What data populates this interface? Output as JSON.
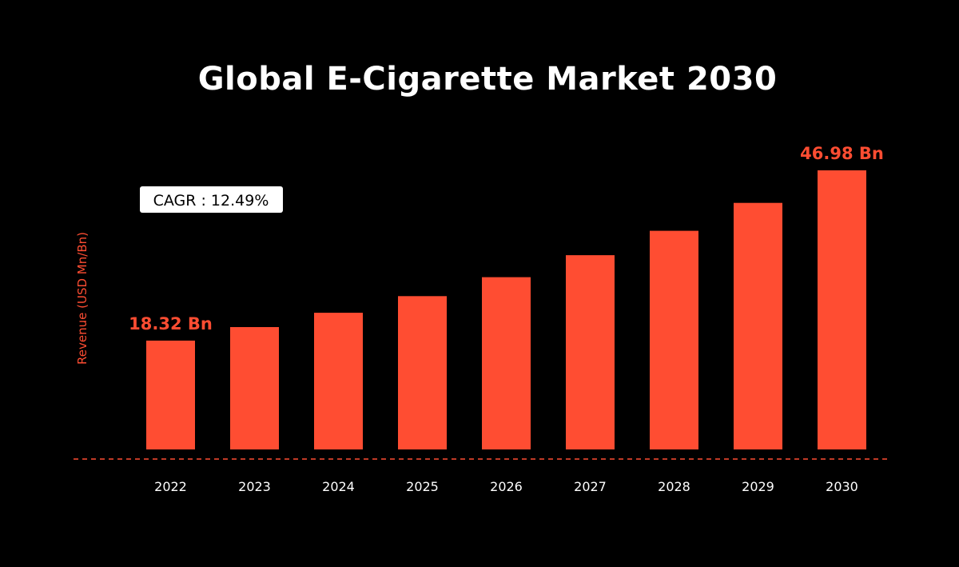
{
  "chart_data": {
    "type": "bar",
    "title": "Global E-Cigarette Market 2030",
    "xlabel": "",
    "ylabel": "Revenue (USD Mn/Bn)",
    "categories": [
      "2022",
      "2023",
      "2024",
      "2025",
      "2026",
      "2027",
      "2028",
      "2029",
      "2030"
    ],
    "values": [
      18.32,
      20.6,
      23.0,
      25.8,
      29.0,
      32.7,
      36.8,
      41.5,
      46.98
    ],
    "ylim": [
      0,
      46.98
    ],
    "grid": false,
    "annotations": {
      "cagr": "CAGR : 12.49%",
      "first_label": "18.32 Bn",
      "last_label": "46.98 Bn"
    }
  },
  "colors": {
    "background": "#000000",
    "bar": "#ff4d32",
    "text": "#ffffff",
    "accent": "#ff4d32",
    "cagr_box": "#ffffff"
  }
}
